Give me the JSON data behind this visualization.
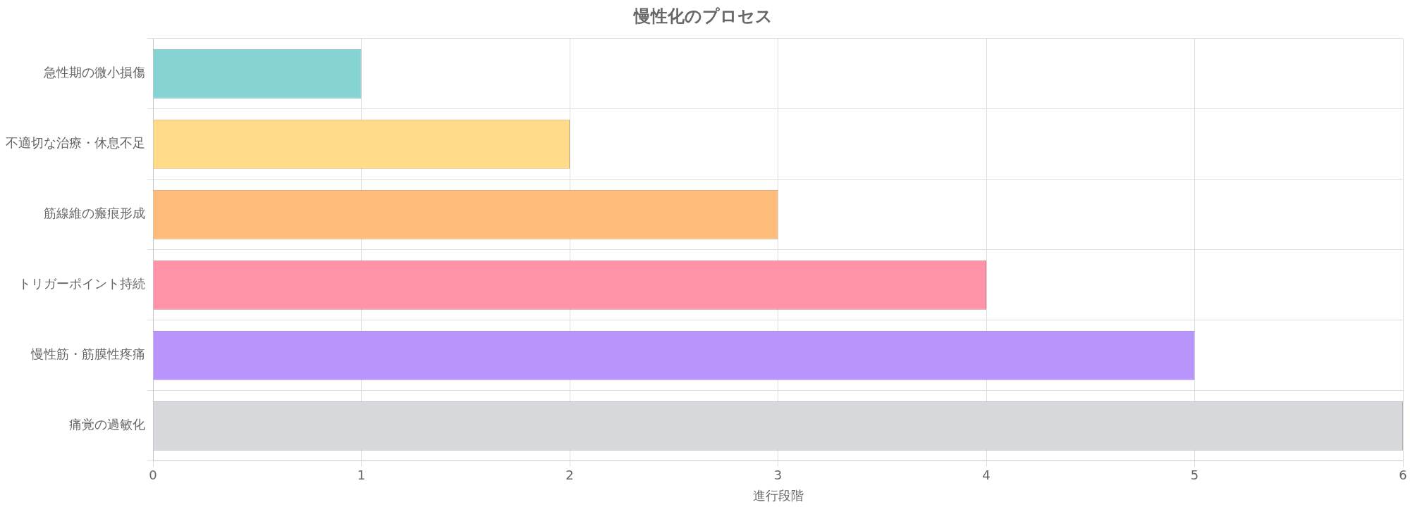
{
  "chart_data": {
    "type": "bar",
    "orientation": "horizontal",
    "title": "慢性化のプロセス",
    "xlabel": "進行段階",
    "categories": [
      "急性期の微小損傷",
      "不適切な治療・休息不足",
      "筋線維の瘢痕形成",
      "トリガーポイント持続",
      "慢性筋・筋膜性疼痛",
      "痛覚の過敏化"
    ],
    "values": [
      1,
      2,
      3,
      4,
      5,
      6
    ],
    "colors": [
      "#85d3d3",
      "#ffdb8a",
      "#ffbb7a",
      "#ff93a8",
      "#b894fd",
      "#d7d8db"
    ],
    "xlim": [
      0,
      6
    ],
    "xticks": [
      0,
      1,
      2,
      3,
      4,
      5,
      6
    ],
    "grid": true,
    "legend": false
  }
}
